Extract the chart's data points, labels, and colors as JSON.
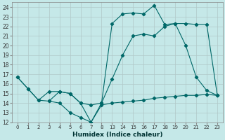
{
  "xlabel": "Humidex (Indice chaleur)",
  "bg_color": "#c5e8e8",
  "grid_color": "#b0c8c8",
  "line_color": "#006868",
  "ylim": [
    12,
    24.5
  ],
  "yticks": [
    12,
    13,
    14,
    15,
    16,
    17,
    18,
    19,
    20,
    21,
    22,
    23,
    24
  ],
  "x_labels": [
    "0",
    "1",
    "2",
    "3",
    "4",
    "5",
    "6",
    "7",
    "8",
    "13",
    "14",
    "15",
    "16",
    "17",
    "18",
    "19",
    "20",
    "21",
    "22",
    "23"
  ],
  "lines": [
    {
      "xi": [
        0,
        1,
        2,
        3,
        4,
        5,
        6,
        7,
        8,
        9,
        10,
        11,
        12,
        13,
        14,
        15,
        16,
        17,
        18,
        19
      ],
      "y": [
        16.7,
        15.5,
        14.3,
        14.2,
        14.0,
        13.0,
        12.5,
        12.0,
        13.8,
        14.0,
        14.1,
        14.2,
        14.3,
        14.5,
        14.6,
        14.7,
        14.8,
        14.8,
        14.9,
        14.8
      ]
    },
    {
      "xi": [
        0,
        1,
        2,
        3,
        4,
        5,
        6,
        7,
        8,
        9,
        10,
        11,
        12,
        13,
        14,
        15,
        16,
        17,
        18,
        19
      ],
      "y": [
        16.7,
        15.5,
        14.3,
        15.2,
        15.2,
        15.0,
        14.0,
        12.0,
        14.0,
        16.5,
        19.0,
        21.0,
        21.2,
        21.0,
        22.0,
        22.3,
        22.3,
        22.2,
        22.2,
        14.8
      ]
    },
    {
      "xi": [
        3,
        4,
        5,
        6,
        7,
        8,
        9,
        10,
        11,
        12,
        13,
        14,
        15,
        16,
        17,
        18,
        19
      ],
      "y": [
        14.2,
        15.2,
        15.0,
        14.0,
        13.8,
        14.0,
        22.3,
        23.3,
        23.4,
        23.3,
        24.2,
        22.2,
        22.3,
        20.0,
        16.7,
        15.3,
        14.8
      ]
    }
  ]
}
